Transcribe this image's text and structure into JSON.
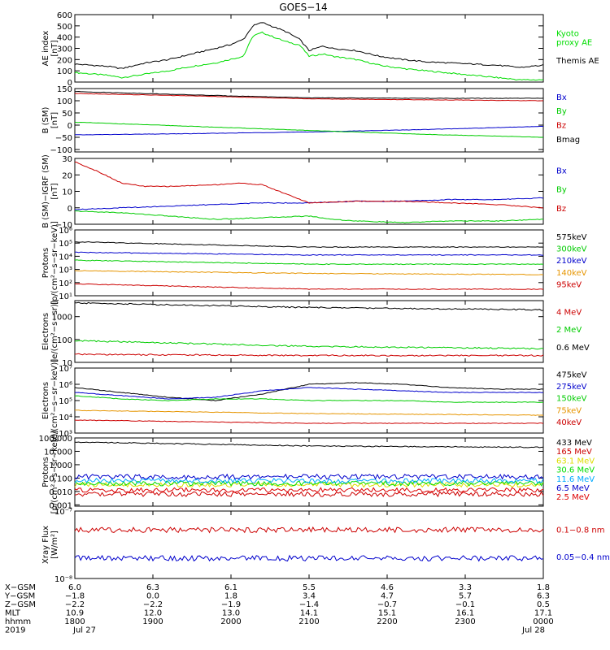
{
  "title": "GOES−14",
  "chart_data": {
    "type": "line",
    "title": "GOES−14",
    "x_times": [
      "1800",
      "1900",
      "2000",
      "2100",
      "2200",
      "2300",
      "0000"
    ],
    "panels": [
      {
        "id": "ae",
        "ylabel": "AE index\n[nT]",
        "scale": "linear",
        "ylim": [
          0,
          600
        ],
        "ticks": [
          {
            "v": 0,
            "l": "0"
          },
          {
            "v": 100,
            "l": "100"
          },
          {
            "v": 200,
            "l": "200"
          },
          {
            "v": 300,
            "l": "300"
          },
          {
            "v": 400,
            "l": "400"
          },
          {
            "v": 500,
            "l": "500"
          },
          {
            "v": 600,
            "l": "600"
          }
        ],
        "series": [
          {
            "name": "Kyoto\nproxy AE",
            "color": "#00dd00",
            "x": [
              0,
              0.07,
              0.1,
              0.15,
              0.2,
              0.25,
              0.3,
              0.33,
              0.36,
              0.38,
              0.4,
              0.45,
              0.48,
              0.5,
              0.53,
              0.55,
              0.6,
              0.65,
              0.7,
              0.75,
              0.8,
              0.85,
              0.9,
              0.95,
              1.0
            ],
            "y": [
              85,
              60,
              40,
              70,
              100,
              140,
              170,
              200,
              230,
              410,
              440,
              360,
              330,
              230,
              250,
              230,
              200,
              150,
              120,
              100,
              80,
              60,
              40,
              20,
              20
            ]
          },
          {
            "name": "Themis AE",
            "color": "#000000",
            "x": [
              0,
              0.07,
              0.1,
              0.15,
              0.2,
              0.25,
              0.3,
              0.33,
              0.36,
              0.38,
              0.4,
              0.45,
              0.48,
              0.5,
              0.53,
              0.55,
              0.6,
              0.65,
              0.7,
              0.75,
              0.8,
              0.85,
              0.9,
              0.95,
              1.0
            ],
            "y": [
              160,
              140,
              120,
              170,
              200,
              250,
              300,
              330,
              380,
              500,
              530,
              450,
              380,
              280,
              320,
              300,
              280,
              230,
              200,
              180,
              170,
              160,
              150,
              130,
              150
            ]
          }
        ]
      },
      {
        "id": "bsm",
        "ylabel": "B (SM)\n[nT]",
        "scale": "linear",
        "ylim": [
          -110,
          150
        ],
        "ticks": [
          {
            "v": -100,
            "l": "−100"
          },
          {
            "v": -50,
            "l": "−50"
          },
          {
            "v": 0,
            "l": "0"
          },
          {
            "v": 50,
            "l": "50"
          },
          {
            "v": 100,
            "l": "100"
          },
          {
            "v": 150,
            "l": "150"
          }
        ],
        "series": [
          {
            "name": "Bx",
            "color": "#0000cc",
            "x": [
              0,
              0.25,
              0.5,
              0.75,
              1.0
            ],
            "y": [
              -40,
              -35,
              -28,
              -18,
              -5
            ]
          },
          {
            "name": "By",
            "color": "#00cc00",
            "x": [
              0,
              0.25,
              0.5,
              0.75,
              1.0
            ],
            "y": [
              12,
              -5,
              -22,
              -38,
              -50
            ]
          },
          {
            "name": "Bz",
            "color": "#cc0000",
            "x": [
              0,
              0.25,
              0.5,
              0.75,
              1.0
            ],
            "y": [
              130,
              120,
              108,
              104,
              100
            ]
          },
          {
            "name": "Bmag",
            "color": "#000000",
            "x": [
              0,
              0.25,
              0.5,
              0.75,
              1.0
            ],
            "y": [
              138,
              124,
              112,
              110,
              110
            ]
          }
        ]
      },
      {
        "id": "bigrf",
        "ylabel": "B (SM)−IGRF (SM)\n[nT]",
        "scale": "linear",
        "ylim": [
          -10,
          30
        ],
        "ticks": [
          {
            "v": -10,
            "l": "−10"
          },
          {
            "v": 0,
            "l": "0"
          },
          {
            "v": 10,
            "l": "10"
          },
          {
            "v": 20,
            "l": "20"
          },
          {
            "v": 30,
            "l": "30"
          }
        ],
        "series": [
          {
            "name": "Bx",
            "color": "#0000cc",
            "x": [
              0,
              0.1,
              0.2,
              0.3,
              0.4,
              0.5,
              0.6,
              0.7,
              0.8,
              0.9,
              1.0
            ],
            "y": [
              -1,
              0,
              1,
              2,
              3,
              3,
              4,
              4,
              5,
              5,
              6
            ]
          },
          {
            "name": "By",
            "color": "#00cc00",
            "x": [
              0,
              0.1,
              0.2,
              0.3,
              0.4,
              0.5,
              0.55,
              0.6,
              0.7,
              0.8,
              0.9,
              1.0
            ],
            "y": [
              -2,
              -3,
              -5,
              -7,
              -6,
              -5,
              -7,
              -8,
              -9,
              -8,
              -8,
              -7
            ]
          },
          {
            "name": "Bz",
            "color": "#cc0000",
            "x": [
              0,
              0.05,
              0.1,
              0.15,
              0.2,
              0.3,
              0.35,
              0.4,
              0.5,
              0.6,
              0.7,
              0.8,
              0.9,
              1.0
            ],
            "y": [
              28,
              22,
              15,
              13,
              13,
              14,
              15,
              14,
              3,
              4,
              4,
              3,
              2,
              0
            ]
          }
        ]
      },
      {
        "id": "protons_mag",
        "ylabel": "Protons\n[p/(cm²−s−sr−keV)]",
        "scale": "log",
        "ylim": [
          1,
          6
        ],
        "ticks": [
          {
            "v": 1,
            "l": "10¹"
          },
          {
            "v": 2,
            "l": "10²"
          },
          {
            "v": 3,
            "l": "10³"
          },
          {
            "v": 4,
            "l": "10⁴"
          },
          {
            "v": 5,
            "l": "10⁵"
          },
          {
            "v": 6,
            "l": "10⁶"
          }
        ],
        "series": [
          {
            "name": "575keV",
            "color": "#000000",
            "x": [
              0,
              0.5,
              1.0
            ],
            "y": [
              5.1,
              4.7,
              4.7
            ]
          },
          {
            "name": "300keV",
            "color": "#00cc00",
            "x": [
              0,
              0.5,
              1.0
            ],
            "y": [
              3.7,
              3.4,
              3.4
            ]
          },
          {
            "name": "210keV",
            "color": "#0000cc",
            "x": [
              0,
              0.5,
              1.0
            ],
            "y": [
              4.3,
              4.1,
              4.1
            ]
          },
          {
            "name": "140keV",
            "color": "#e69500",
            "x": [
              0,
              0.5,
              1.0
            ],
            "y": [
              2.9,
              2.7,
              2.6
            ]
          },
          {
            "name": "95keV",
            "color": "#cc0000",
            "x": [
              0,
              0.5,
              1.0
            ],
            "y": [
              1.9,
              1.5,
              1.5
            ]
          }
        ]
      },
      {
        "id": "electrons_mev",
        "ylabel": "Electrons\n[e/(cm²−s−sr)]",
        "scale": "log",
        "ylim": [
          1,
          3.7
        ],
        "ticks": [
          {
            "v": 1,
            "l": "10"
          },
          {
            "v": 2,
            "l": "100"
          },
          {
            "v": 3,
            "l": "1000"
          }
        ],
        "series": [
          {
            "name": "4 MeV",
            "color": "#cc0000",
            "x": [
              0,
              0.5,
              1.0
            ],
            "y": [
              1.35,
              1.3,
              1.3
            ]
          },
          {
            "name": "2 MeV",
            "color": "#00cc00",
            "x": [
              0,
              0.5,
              1.0
            ],
            "y": [
              1.95,
              1.7,
              1.6
            ]
          },
          {
            "name": "0.6 MeV",
            "color": "#000000",
            "x": [
              0,
              0.5,
              1.0
            ],
            "y": [
              3.6,
              3.4,
              3.3
            ]
          }
        ]
      },
      {
        "id": "electrons_kev",
        "ylabel": "Electrons\n[e/(cm²−s−sr−keV)]",
        "scale": "log",
        "ylim": [
          3,
          7
        ],
        "ticks": [
          {
            "v": 3,
            "l": "10³"
          },
          {
            "v": 4,
            "l": "10⁴"
          },
          {
            "v": 5,
            "l": "10⁵"
          },
          {
            "v": 6,
            "l": "10⁶"
          },
          {
            "v": 7,
            "l": "10⁷"
          }
        ],
        "series": [
          {
            "name": "475keV",
            "color": "#000000",
            "x": [
              0,
              0.1,
              0.2,
              0.3,
              0.4,
              0.5,
              0.6,
              0.7,
              0.8,
              0.9,
              1.0
            ],
            "y": [
              5.8,
              5.5,
              5.2,
              5.0,
              5.4,
              6.0,
              6.1,
              6.0,
              5.8,
              5.7,
              5.7
            ]
          },
          {
            "name": "275keV",
            "color": "#0000cc",
            "x": [
              0,
              0.1,
              0.2,
              0.3,
              0.4,
              0.5,
              0.6,
              0.7,
              0.8,
              0.9,
              1.0
            ],
            "y": [
              5.5,
              5.3,
              5.1,
              5.2,
              5.6,
              5.8,
              5.7,
              5.6,
              5.5,
              5.5,
              5.5
            ]
          },
          {
            "name": "150keV",
            "color": "#00cc00",
            "x": [
              0,
              0.1,
              0.2,
              0.3,
              0.4,
              0.5,
              0.6,
              0.7,
              0.8,
              0.9,
              1.0
            ],
            "y": [
              5.3,
              5.1,
              5.0,
              5.1,
              5.1,
              5.0,
              5.0,
              5.0,
              4.9,
              4.9,
              4.9
            ]
          },
          {
            "name": "75keV",
            "color": "#e69500",
            "x": [
              0,
              0.5,
              1.0
            ],
            "y": [
              4.4,
              4.2,
              4.1
            ]
          },
          {
            "name": "40keV",
            "color": "#cc0000",
            "x": [
              0,
              0.5,
              1.0
            ],
            "y": [
              3.8,
              3.6,
              3.6
            ]
          }
        ]
      },
      {
        "id": "protons_mev",
        "ylabel": "Protons\n[p/(cm²−s−sr−keV)]",
        "scale": "log",
        "ylim": [
          -3.1,
          2
        ],
        "ticks": [
          {
            "v": -3,
            "l": "0.001"
          },
          {
            "v": -2,
            "l": "0.010"
          },
          {
            "v": -1,
            "l": "0.100"
          },
          {
            "v": 0,
            "l": "1.000"
          },
          {
            "v": 1,
            "l": "10.000"
          },
          {
            "v": 2,
            "l": "100.000"
          }
        ],
        "series": [
          {
            "name": "433 MeV",
            "color": "#000000",
            "x": [
              0,
              0.5,
              1.0
            ],
            "y": [
              1.7,
              1.4,
              1.3
            ]
          },
          {
            "name": "165 MeV",
            "color": "#cc0000",
            "x": [
              0,
              1.0
            ],
            "y": [
              -2.2,
              -2.2
            ]
          },
          {
            "name": "63.1 MeV",
            "color": "#dddd00",
            "x": [
              0,
              1.0
            ],
            "y": [
              -1.5,
              -1.5
            ]
          },
          {
            "name": "30.6 MeV",
            "color": "#00dd00",
            "x": [
              0,
              1.0
            ],
            "y": [
              -1.4,
              -1.4
            ]
          },
          {
            "name": "11.6 MeV",
            "color": "#00aaff",
            "x": [
              0,
              1.0
            ],
            "y": [
              -1.2,
              -1.2
            ]
          },
          {
            "name": "6.5 MeV",
            "color": "#0000cc",
            "x": [
              0,
              1.0
            ],
            "y": [
              -0.9,
              -0.9
            ]
          },
          {
            "name": "2.5 MeV",
            "color": "#dd0000",
            "x": [
              0,
              1.0
            ],
            "y": [
              -1.9,
              -1.9
            ]
          }
        ]
      },
      {
        "id": "xray",
        "ylabel": "Xray Flux\n[W/m²]",
        "scale": "log",
        "ylim": [
          -8,
          -7
        ],
        "ticks": [
          {
            "v": -8,
            "l": "10⁻⁸"
          },
          {
            "v": -7,
            "l": "10⁻⁷"
          }
        ],
        "series": [
          {
            "name": "0.1−0.8 nm",
            "color": "#cc0000",
            "x": [
              0,
              1.0
            ],
            "y": [
              -7.28,
              -7.28
            ]
          },
          {
            "name": "0.05−0.4 nm",
            "color": "#0000cc",
            "x": [
              0,
              1.0
            ],
            "y": [
              -7.7,
              -7.7
            ]
          }
        ]
      }
    ],
    "ephemeris": {
      "labels": [
        "X−GSM",
        "Y−GSM",
        "Z−GSM",
        "MLT",
        "hhmm",
        "2019"
      ],
      "columns": [
        [
          "6.0",
          "−1.8",
          "−2.2",
          "10.9",
          "1800",
          "Jul 27"
        ],
        [
          "6.3",
          "0.0",
          "−2.2",
          "12.0",
          "1900",
          ""
        ],
        [
          "6.1",
          "1.8",
          "−1.9",
          "13.0",
          "2000",
          ""
        ],
        [
          "5.5",
          "3.4",
          "−1.4",
          "14.1",
          "2100",
          ""
        ],
        [
          "4.6",
          "4.7",
          "−0.7",
          "15.1",
          "2200",
          ""
        ],
        [
          "3.3",
          "5.7",
          "−0.1",
          "16.1",
          "2300",
          ""
        ],
        [
          "1.8",
          "6.3",
          "0.5",
          "17.1",
          "0000",
          "Jul 28"
        ]
      ]
    }
  }
}
